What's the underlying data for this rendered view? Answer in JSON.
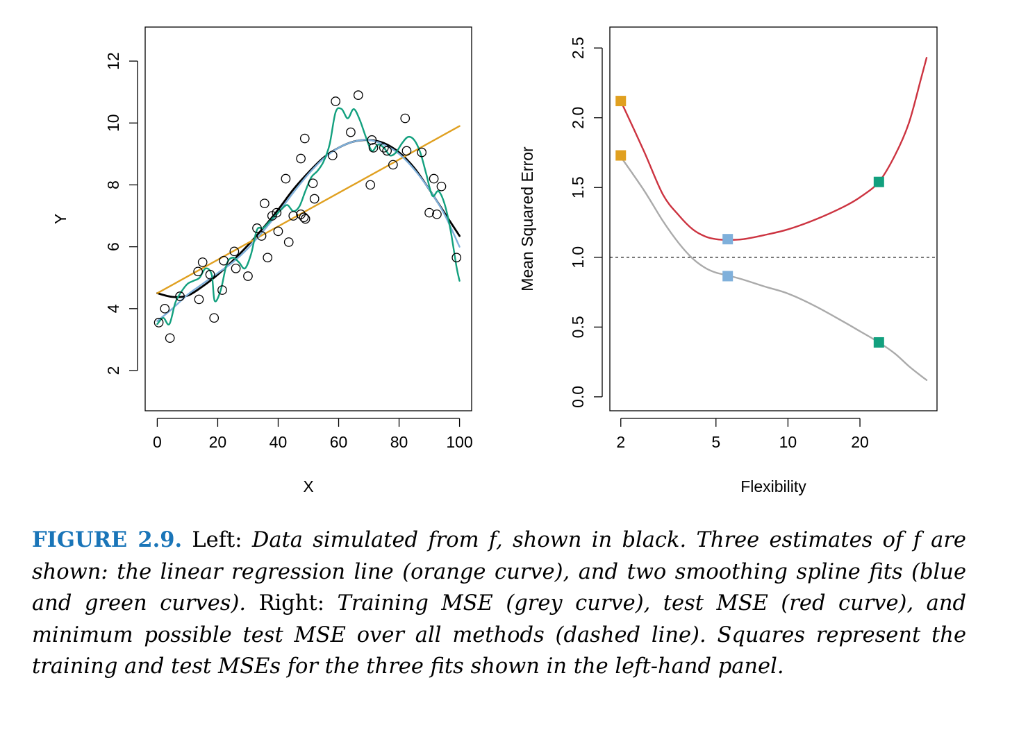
{
  "chart_data": [
    {
      "type": "scatter",
      "panel": "Left",
      "xlabel": "X",
      "ylabel": "Y",
      "xlim": [
        -4,
        104
      ],
      "ylim": [
        0.7,
        13.1
      ],
      "xticks": [
        0,
        20,
        40,
        60,
        80,
        100
      ],
      "xtick_labels": [
        "0",
        "20",
        "40",
        "60",
        "80",
        "100"
      ],
      "yticks": [
        2,
        4,
        6,
        8,
        10,
        12
      ],
      "ytick_labels": [
        "2",
        "4",
        "6",
        "8",
        "10",
        "12"
      ],
      "grid": false,
      "points": [
        {
          "x": 0.5,
          "y": 3.55
        },
        {
          "x": 2.5,
          "y": 4.0
        },
        {
          "x": 4.2,
          "y": 3.05
        },
        {
          "x": 7.5,
          "y": 4.4
        },
        {
          "x": 13.5,
          "y": 5.2
        },
        {
          "x": 13.8,
          "y": 4.3
        },
        {
          "x": 15.0,
          "y": 5.5
        },
        {
          "x": 17.5,
          "y": 5.1
        },
        {
          "x": 18.8,
          "y": 3.7
        },
        {
          "x": 21.5,
          "y": 4.6
        },
        {
          "x": 22.0,
          "y": 5.55
        },
        {
          "x": 25.5,
          "y": 5.85
        },
        {
          "x": 26.0,
          "y": 5.3
        },
        {
          "x": 30.0,
          "y": 5.05
        },
        {
          "x": 33.0,
          "y": 6.6
        },
        {
          "x": 34.5,
          "y": 6.35
        },
        {
          "x": 35.5,
          "y": 7.4
        },
        {
          "x": 36.5,
          "y": 5.65
        },
        {
          "x": 38.0,
          "y": 7.0
        },
        {
          "x": 39.5,
          "y": 7.1
        },
        {
          "x": 40.0,
          "y": 6.5
        },
        {
          "x": 42.5,
          "y": 8.2
        },
        {
          "x": 43.5,
          "y": 6.15
        },
        {
          "x": 45.0,
          "y": 7.0
        },
        {
          "x": 47.5,
          "y": 8.85
        },
        {
          "x": 47.5,
          "y": 7.05
        },
        {
          "x": 48.5,
          "y": 6.95
        },
        {
          "x": 48.8,
          "y": 9.5
        },
        {
          "x": 49.0,
          "y": 6.9
        },
        {
          "x": 51.5,
          "y": 8.05
        },
        {
          "x": 52.0,
          "y": 7.55
        },
        {
          "x": 58.0,
          "y": 8.95
        },
        {
          "x": 59.0,
          "y": 10.7
        },
        {
          "x": 64.0,
          "y": 9.7
        },
        {
          "x": 66.5,
          "y": 10.9
        },
        {
          "x": 70.5,
          "y": 8.0
        },
        {
          "x": 71.0,
          "y": 9.45
        },
        {
          "x": 71.5,
          "y": 9.2
        },
        {
          "x": 75.0,
          "y": 9.2
        },
        {
          "x": 76.0,
          "y": 9.1
        },
        {
          "x": 78.0,
          "y": 8.65
        },
        {
          "x": 82.0,
          "y": 10.15
        },
        {
          "x": 82.5,
          "y": 9.1
        },
        {
          "x": 87.5,
          "y": 9.05
        },
        {
          "x": 90.0,
          "y": 7.1
        },
        {
          "x": 91.5,
          "y": 8.2
        },
        {
          "x": 92.5,
          "y": 7.05
        },
        {
          "x": 94.0,
          "y": 7.95
        },
        {
          "x": 99.0,
          "y": 5.65
        }
      ],
      "series": [
        {
          "name": "f",
          "color": "#000000",
          "x": [
            0,
            5,
            10,
            15,
            20,
            25,
            30,
            35,
            40,
            45,
            50,
            55,
            60,
            65,
            70,
            75,
            80,
            85,
            90,
            95,
            100
          ],
          "y": [
            4.5,
            4.38,
            4.42,
            4.72,
            5.1,
            5.55,
            6.05,
            6.6,
            7.2,
            7.85,
            8.4,
            8.88,
            9.2,
            9.4,
            9.45,
            9.35,
            9.05,
            8.55,
            7.85,
            7.1,
            6.35
          ]
        },
        {
          "name": "linear regression",
          "color": "#e0a020",
          "x": [
            0,
            100
          ],
          "y": [
            4.5,
            9.9
          ]
        },
        {
          "name": "smoothing spline (blue)",
          "color": "#7fb0db",
          "x": [
            0,
            5,
            10,
            15,
            20,
            25,
            30,
            35,
            40,
            45,
            50,
            55,
            60,
            65,
            70,
            75,
            80,
            85,
            90,
            95,
            100
          ],
          "y": [
            3.6,
            4.0,
            4.45,
            4.8,
            5.15,
            5.5,
            5.95,
            6.5,
            7.1,
            7.75,
            8.35,
            8.85,
            9.2,
            9.4,
            9.45,
            9.3,
            9.0,
            8.5,
            7.85,
            7.05,
            6.0
          ]
        },
        {
          "name": "smoothing spline (green)",
          "color": "#12a07e",
          "x": [
            0,
            2,
            4,
            6,
            8,
            10,
            12,
            14,
            16,
            18,
            19,
            21,
            23,
            25,
            27,
            29,
            31,
            33,
            35,
            37,
            39,
            41,
            43,
            45,
            47,
            49,
            51,
            53,
            55,
            57,
            59,
            61,
            63,
            65,
            67,
            69,
            71,
            73,
            75,
            77,
            79,
            81,
            83,
            85,
            87,
            89,
            91,
            93,
            95,
            97,
            99,
            100
          ],
          "y": [
            3.5,
            3.7,
            3.5,
            4.2,
            4.55,
            4.8,
            4.9,
            5.0,
            5.3,
            5.1,
            4.25,
            4.6,
            5.45,
            5.65,
            5.5,
            5.3,
            5.75,
            6.55,
            6.6,
            6.8,
            7.0,
            7.2,
            7.35,
            7.15,
            7.3,
            7.8,
            8.25,
            8.45,
            8.75,
            9.3,
            10.35,
            10.45,
            10.15,
            10.45,
            10.1,
            9.55,
            9.1,
            9.3,
            9.2,
            8.95,
            9.05,
            9.35,
            9.55,
            9.45,
            9.05,
            8.35,
            7.65,
            7.8,
            7.4,
            6.55,
            5.35,
            4.9
          ]
        }
      ]
    },
    {
      "type": "line",
      "panel": "Right",
      "xlabel": "Flexibility",
      "ylabel": "Mean Squared Error",
      "x_scale": "log",
      "xlim": [
        1.8,
        42
      ],
      "ylim": [
        -0.1,
        2.65
      ],
      "xticks": [
        2,
        5,
        10,
        20
      ],
      "xtick_labels": [
        "2",
        "5",
        "10",
        "20"
      ],
      "yticks": [
        0.0,
        0.5,
        1.0,
        1.5,
        2.0,
        2.5
      ],
      "ytick_labels": [
        "0.0",
        "0.5",
        "1.0",
        "1.5",
        "2.0",
        "2.5"
      ],
      "grid": false,
      "reference_line": {
        "y": 1.0,
        "style": "dashed",
        "color": "#000000",
        "label": "minimum possible test MSE"
      },
      "series": [
        {
          "name": "test MSE",
          "color": "#cc3340",
          "x": [
            2,
            2.5,
            3,
            3.5,
            4,
            4.5,
            5,
            5.6,
            6.5,
            8,
            10,
            13,
            17,
            20,
            24,
            28,
            32,
            36,
            38
          ],
          "y": [
            2.12,
            1.76,
            1.45,
            1.3,
            1.2,
            1.15,
            1.13,
            1.125,
            1.13,
            1.16,
            1.2,
            1.27,
            1.36,
            1.43,
            1.54,
            1.73,
            1.96,
            2.28,
            2.43
          ]
        },
        {
          "name": "training MSE",
          "color": "#aaaaaa",
          "x": [
            2,
            2.5,
            3,
            3.5,
            4,
            4.5,
            5,
            5.6,
            6.5,
            8,
            10,
            13,
            17,
            20,
            24,
            28,
            32,
            36,
            38
          ],
          "y": [
            1.72,
            1.48,
            1.26,
            1.1,
            0.99,
            0.925,
            0.89,
            0.87,
            0.84,
            0.79,
            0.74,
            0.65,
            0.54,
            0.47,
            0.39,
            0.31,
            0.22,
            0.15,
            0.12
          ]
        }
      ],
      "markers": [
        {
          "x": 2,
          "y": 2.12,
          "color": "#e0a020",
          "shape": "square"
        },
        {
          "x": 2,
          "y": 1.73,
          "color": "#e0a020",
          "shape": "square"
        },
        {
          "x": 5.6,
          "y": 1.13,
          "color": "#7fb0db",
          "shape": "square"
        },
        {
          "x": 5.6,
          "y": 0.865,
          "color": "#7fb0db",
          "shape": "square"
        },
        {
          "x": 24,
          "y": 1.54,
          "color": "#12a07e",
          "shape": "square"
        },
        {
          "x": 24,
          "y": 0.39,
          "color": "#12a07e",
          "shape": "square"
        }
      ]
    }
  ],
  "caption": {
    "label": "FIGURE 2.9.",
    "left_word": "Left:",
    "left_text": "Data simulated from f, shown in black. Three estimates of f are shown: the linear regression line (orange curve), and two smoothing spline fits (blue and green curves).",
    "right_word": "Right:",
    "right_text": "Training MSE (grey curve), test MSE (red curve), and minimum possible test MSE over all methods (dashed line). Squares represent the training and test MSEs for the three fits shown in the left-hand panel."
  }
}
